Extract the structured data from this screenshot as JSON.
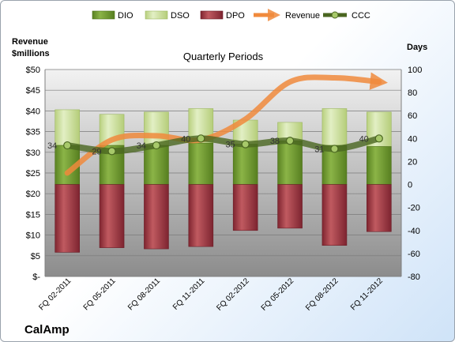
{
  "chart_data": {
    "type": "bar",
    "title": "",
    "subtitle": "Quarterly Periods",
    "company": "CalAmp",
    "left_axis": {
      "title_lines": [
        "Revenue",
        "$millions"
      ],
      "ticks": [
        "$-",
        "$5",
        "$10",
        "$15",
        "$20",
        "$25",
        "$30",
        "$35",
        "$40",
        "$45",
        "$50"
      ],
      "ylim": [
        0,
        50
      ]
    },
    "right_axis": {
      "title": "Days",
      "ticks": [
        "-80",
        "-60",
        "-40",
        "-20",
        "0",
        "20",
        "40",
        "60",
        "80",
        "100"
      ],
      "ylim": [
        -80,
        100
      ]
    },
    "legend_position": "top",
    "grid": true,
    "categories": [
      "FQ 02-2011",
      "FQ 05-2011",
      "FQ 08-2011",
      "FQ 11-2011",
      "FQ 02-2012",
      "FQ 05-2012",
      "FQ 08-2012",
      "FQ 11-2012"
    ],
    "series": [
      {
        "name": "DIO",
        "kind": "stacked-bar",
        "axis": "days",
        "color": "#6f9a2e",
        "values": [
          34,
          34,
          34,
          36,
          35,
          38,
          34,
          33
        ]
      },
      {
        "name": "DSO",
        "kind": "stacked-bar",
        "axis": "days",
        "color": "#cfe3a4",
        "values": [
          31,
          27,
          29,
          30,
          21,
          16,
          32,
          30
        ]
      },
      {
        "name": "DPO",
        "kind": "negative-bar",
        "axis": "days",
        "color": "#a33a43",
        "values": [
          -59,
          -55,
          -56,
          -54,
          -40,
          -38,
          -53,
          -41
        ]
      },
      {
        "name": "Revenue",
        "kind": "line",
        "axis": "revenue",
        "color": "#f08a3c",
        "values": [
          25,
          33,
          34,
          33,
          38,
          47,
          48,
          47
        ]
      },
      {
        "name": "CCC",
        "kind": "line",
        "axis": "days",
        "color": "#4f6b22",
        "values": [
          34,
          29,
          34,
          40,
          35,
          38,
          31,
          40
        ]
      }
    ],
    "ccc_labels": [
      "34",
      "29",
      "34",
      "40",
      "35",
      "38",
      "31",
      "40"
    ]
  }
}
